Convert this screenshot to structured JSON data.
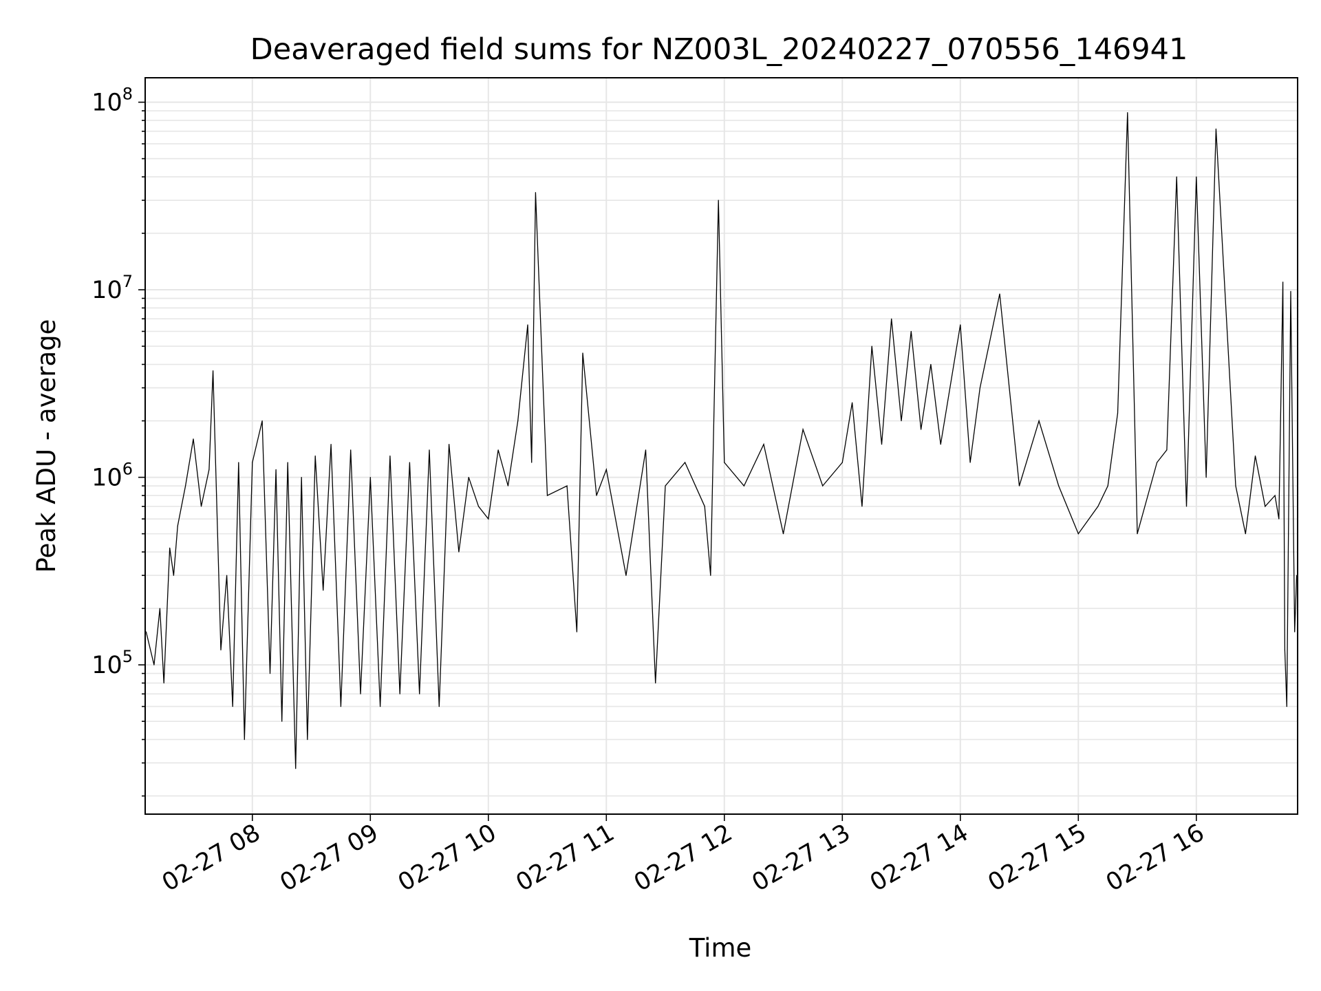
{
  "chart_data": {
    "type": "line",
    "title": "Deaveraged field sums for NZ003L_20240227_070556_146941",
    "xlabel": "Time",
    "ylabel": "Peak ADU - average",
    "yscale": "log",
    "ylim": [
      16000,
      135000000
    ],
    "xlim": [
      "02-27 07:05:30",
      "02-27 16:51:30"
    ],
    "grid": true,
    "line_color": "#000000",
    "x_ticks": [
      "02-27 08",
      "02-27 09",
      "02-27 10",
      "02-27 11",
      "02-27 12",
      "02-27 13",
      "02-27 14",
      "02-27 15",
      "02-27 16"
    ],
    "y_ticks": [
      {
        "value": 100000,
        "base": "10",
        "exp": "5"
      },
      {
        "value": 1000000,
        "base": "10",
        "exp": "6"
      },
      {
        "value": 10000000,
        "base": "10",
        "exp": "7"
      },
      {
        "value": 100000000,
        "base": "10",
        "exp": "8"
      }
    ],
    "series": [
      {
        "x": [
          "02-27 07:06",
          "02-27 07:10",
          "02-27 07:13",
          "02-27 07:15",
          "02-27 07:18",
          "02-27 07:20",
          "02-27 07:22",
          "02-27 07:26",
          "02-27 07:30",
          "02-27 07:34",
          "02-27 07:38",
          "02-27 07:40",
          "02-27 07:44",
          "02-27 07:47",
          "02-27 07:50",
          "02-27 07:53",
          "02-27 07:56",
          "02-27 08:00",
          "02-27 08:05",
          "02-27 08:09",
          "02-27 08:12",
          "02-27 08:15",
          "02-27 08:18",
          "02-27 08:22",
          "02-27 08:25",
          "02-27 08:28",
          "02-27 08:32",
          "02-27 08:36",
          "02-27 08:40",
          "02-27 08:45",
          "02-27 08:50",
          "02-27 08:55",
          "02-27 09:00",
          "02-27 09:05",
          "02-27 09:10",
          "02-27 09:15",
          "02-27 09:20",
          "02-27 09:25",
          "02-27 09:30",
          "02-27 09:35",
          "02-27 09:40",
          "02-27 09:45",
          "02-27 09:50",
          "02-27 09:55",
          "02-27 10:00",
          "02-27 10:05",
          "02-27 10:10",
          "02-27 10:15",
          "02-27 10:20",
          "02-27 10:22",
          "02-27 10:24",
          "02-27 10:30",
          "02-27 10:40",
          "02-27 10:45",
          "02-27 10:48",
          "02-27 10:55",
          "02-27 11:00",
          "02-27 11:10",
          "02-27 11:20",
          "02-27 11:25",
          "02-27 11:30",
          "02-27 11:40",
          "02-27 11:50",
          "02-27 11:53",
          "02-27 11:57",
          "02-27 12:00",
          "02-27 12:10",
          "02-27 12:20",
          "02-27 12:30",
          "02-27 12:40",
          "02-27 12:50",
          "02-27 13:00",
          "02-27 13:05",
          "02-27 13:10",
          "02-27 13:15",
          "02-27 13:20",
          "02-27 13:25",
          "02-27 13:30",
          "02-27 13:35",
          "02-27 13:40",
          "02-27 13:45",
          "02-27 13:50",
          "02-27 14:00",
          "02-27 14:05",
          "02-27 14:10",
          "02-27 14:20",
          "02-27 14:30",
          "02-27 14:40",
          "02-27 14:50",
          "02-27 15:00",
          "02-27 15:10",
          "02-27 15:15",
          "02-27 15:20",
          "02-27 15:25",
          "02-27 15:30",
          "02-27 15:40",
          "02-27 15:45",
          "02-27 15:50",
          "02-27 15:55",
          "02-27 16:00",
          "02-27 16:05",
          "02-27 16:10",
          "02-27 16:20",
          "02-27 16:25",
          "02-27 16:30",
          "02-27 16:35",
          "02-27 16:40",
          "02-27 16:42",
          "02-27 16:44",
          "02-27 16:45",
          "02-27 16:46",
          "02-27 16:48",
          "02-27 16:50",
          "02-27 16:51"
        ],
        "values": [
          150000,
          100000,
          200000,
          80000,
          420000,
          300000,
          550000,
          900000,
          1600000,
          700000,
          1100000,
          3700000,
          120000,
          300000,
          60000,
          1200000,
          40000,
          1200000,
          2000000,
          90000,
          1100000,
          50000,
          1200000,
          28000,
          1000000,
          40000,
          1300000,
          250000,
          1500000,
          60000,
          1400000,
          70000,
          1000000,
          60000,
          1300000,
          70000,
          1200000,
          70000,
          1400000,
          60000,
          1500000,
          400000,
          1000000,
          700000,
          600000,
          1400000,
          900000,
          2000000,
          6500000,
          1200000,
          33000000,
          800000,
          900000,
          150000,
          4600000,
          800000,
          1100000,
          300000,
          1400000,
          80000,
          900000,
          1200000,
          700000,
          300000,
          30000000,
          1200000,
          900000,
          1500000,
          500000,
          1800000,
          900000,
          1200000,
          2500000,
          700000,
          5000000,
          1500000,
          7000000,
          2000000,
          6000000,
          1800000,
          4000000,
          1500000,
          6500000,
          1200000,
          3000000,
          9500000,
          900000,
          2000000,
          900000,
          500000,
          700000,
          900000,
          2200000,
          88000000,
          500000,
          1200000,
          1400000,
          40000000,
          700000,
          40000000,
          1000000,
          72000000,
          900000,
          500000,
          1300000,
          700000,
          800000,
          600000,
          11000000,
          120000,
          60000,
          9800000,
          150000,
          300000
        ]
      }
    ]
  }
}
